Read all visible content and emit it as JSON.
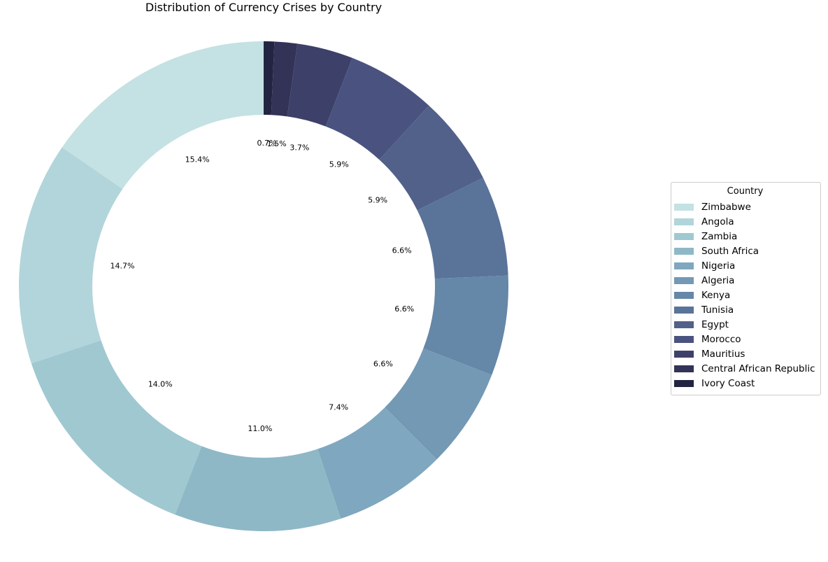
{
  "chart_data": {
    "type": "pie",
    "donut": true,
    "title": "Distribution of Currency Crises by Country",
    "legend_title": "Country",
    "legend_position": "right",
    "start_angle": "top",
    "direction": "clockwise",
    "slices": [
      {
        "label": "Ivory Coast",
        "percent": 0.7,
        "percent_label": "0.7%",
        "color": "#232442"
      },
      {
        "label": "Central African Republic",
        "percent": 1.5,
        "percent_label": "1.5%",
        "color": "#333257"
      },
      {
        "label": "Mauritius",
        "percent": 3.7,
        "percent_label": "3.7%",
        "color": "#3d4169"
      },
      {
        "label": "Morocco",
        "percent": 5.9,
        "percent_label": "5.9%",
        "color": "#4a5380"
      },
      {
        "label": "Egypt",
        "percent": 5.9,
        "percent_label": "5.9%",
        "color": "#516189"
      },
      {
        "label": "Tunisia",
        "percent": 6.6,
        "percent_label": "6.6%",
        "color": "#5a7399"
      },
      {
        "label": "Kenya",
        "percent": 6.6,
        "percent_label": "6.6%",
        "color": "#6587a8"
      },
      {
        "label": "Algeria",
        "percent": 6.6,
        "percent_label": "6.6%",
        "color": "#7399b4"
      },
      {
        "label": "Nigeria",
        "percent": 7.4,
        "percent_label": "7.4%",
        "color": "#7fa7bf"
      },
      {
        "label": "South Africa",
        "percent": 11.0,
        "percent_label": "11.0%",
        "color": "#8fb8c7"
      },
      {
        "label": "Zambia",
        "percent": 14.0,
        "percent_label": "14.0%",
        "color": "#a0c8d1"
      },
      {
        "label": "Angola",
        "percent": 14.7,
        "percent_label": "14.7%",
        "color": "#b1d5da"
      },
      {
        "label": "Zimbabwe",
        "percent": 15.4,
        "percent_label": "15.4%",
        "color": "#c4e1e3"
      }
    ],
    "legend_order": [
      "Zimbabwe",
      "Angola",
      "Zambia",
      "South Africa",
      "Nigeria",
      "Algeria",
      "Kenya",
      "Tunisia",
      "Egypt",
      "Morocco",
      "Mauritius",
      "Central African Republic",
      "Ivory Coast"
    ]
  }
}
